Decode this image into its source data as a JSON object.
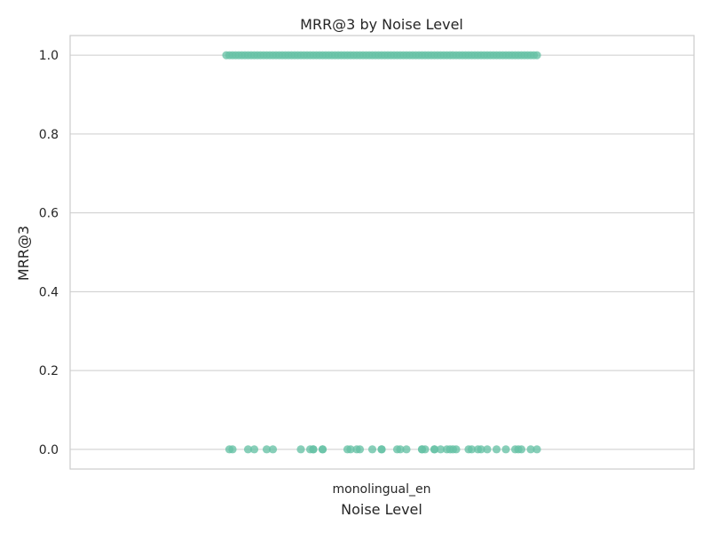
{
  "chart_data": {
    "type": "scatter",
    "title": "MRR@3 by Noise Level",
    "xlabel": "Noise Level",
    "ylabel": "MRR@3",
    "categories": [
      "monolingual_en"
    ],
    "ylim": [
      -0.05,
      1.05
    ],
    "yticks": [
      0.0,
      0.2,
      0.4,
      0.6,
      0.8,
      1.0
    ],
    "ytick_labels": [
      "0.0",
      "0.2",
      "0.4",
      "0.6",
      "0.8",
      "1.0"
    ],
    "grid": true,
    "point_color": "#66c2a5",
    "series": [
      {
        "category": "monolingual_en",
        "y_high": 1.0,
        "y_low": 0.0,
        "x_jitter_high": [
          -0.5,
          -0.49,
          -0.48,
          -0.47,
          -0.46,
          -0.45,
          -0.44,
          -0.43,
          -0.42,
          -0.41,
          -0.4,
          -0.39,
          -0.38,
          -0.37,
          -0.36,
          -0.35,
          -0.34,
          -0.33,
          -0.32,
          -0.31,
          -0.3,
          -0.29,
          -0.28,
          -0.27,
          -0.26,
          -0.25,
          -0.24,
          -0.23,
          -0.22,
          -0.21,
          -0.2,
          -0.19,
          -0.18,
          -0.17,
          -0.16,
          -0.15,
          -0.14,
          -0.13,
          -0.12,
          -0.11,
          -0.1,
          -0.09,
          -0.08,
          -0.07,
          -0.06,
          -0.05,
          -0.04,
          -0.03,
          -0.02,
          -0.01,
          0.0,
          0.01,
          0.02,
          0.03,
          0.04,
          0.05,
          0.06,
          0.07,
          0.08,
          0.09,
          0.1,
          0.11,
          0.12,
          0.13,
          0.14,
          0.15,
          0.16,
          0.17,
          0.18,
          0.19,
          0.2,
          0.21,
          0.22,
          0.23,
          0.24,
          0.25,
          0.26,
          0.27,
          0.28,
          0.29,
          0.3,
          0.31,
          0.32,
          0.33,
          0.34,
          0.35,
          0.36,
          0.37,
          0.38,
          0.39,
          0.4,
          0.41,
          0.42,
          0.43,
          0.44,
          0.45,
          0.46,
          0.47,
          0.48,
          0.49,
          0.5
        ],
        "x_jitter_low": [
          -0.49,
          -0.48,
          -0.43,
          -0.41,
          -0.37,
          -0.35,
          -0.26,
          -0.23,
          -0.22,
          -0.22,
          -0.19,
          -0.19,
          -0.11,
          -0.1,
          -0.08,
          -0.07,
          -0.03,
          0.0,
          0.0,
          0.05,
          0.06,
          0.08,
          0.13,
          0.13,
          0.14,
          0.17,
          0.17,
          0.19,
          0.21,
          0.22,
          0.23,
          0.24,
          0.28,
          0.29,
          0.31,
          0.32,
          0.34,
          0.37,
          0.4,
          0.43,
          0.44,
          0.45,
          0.48,
          0.5
        ]
      }
    ]
  }
}
